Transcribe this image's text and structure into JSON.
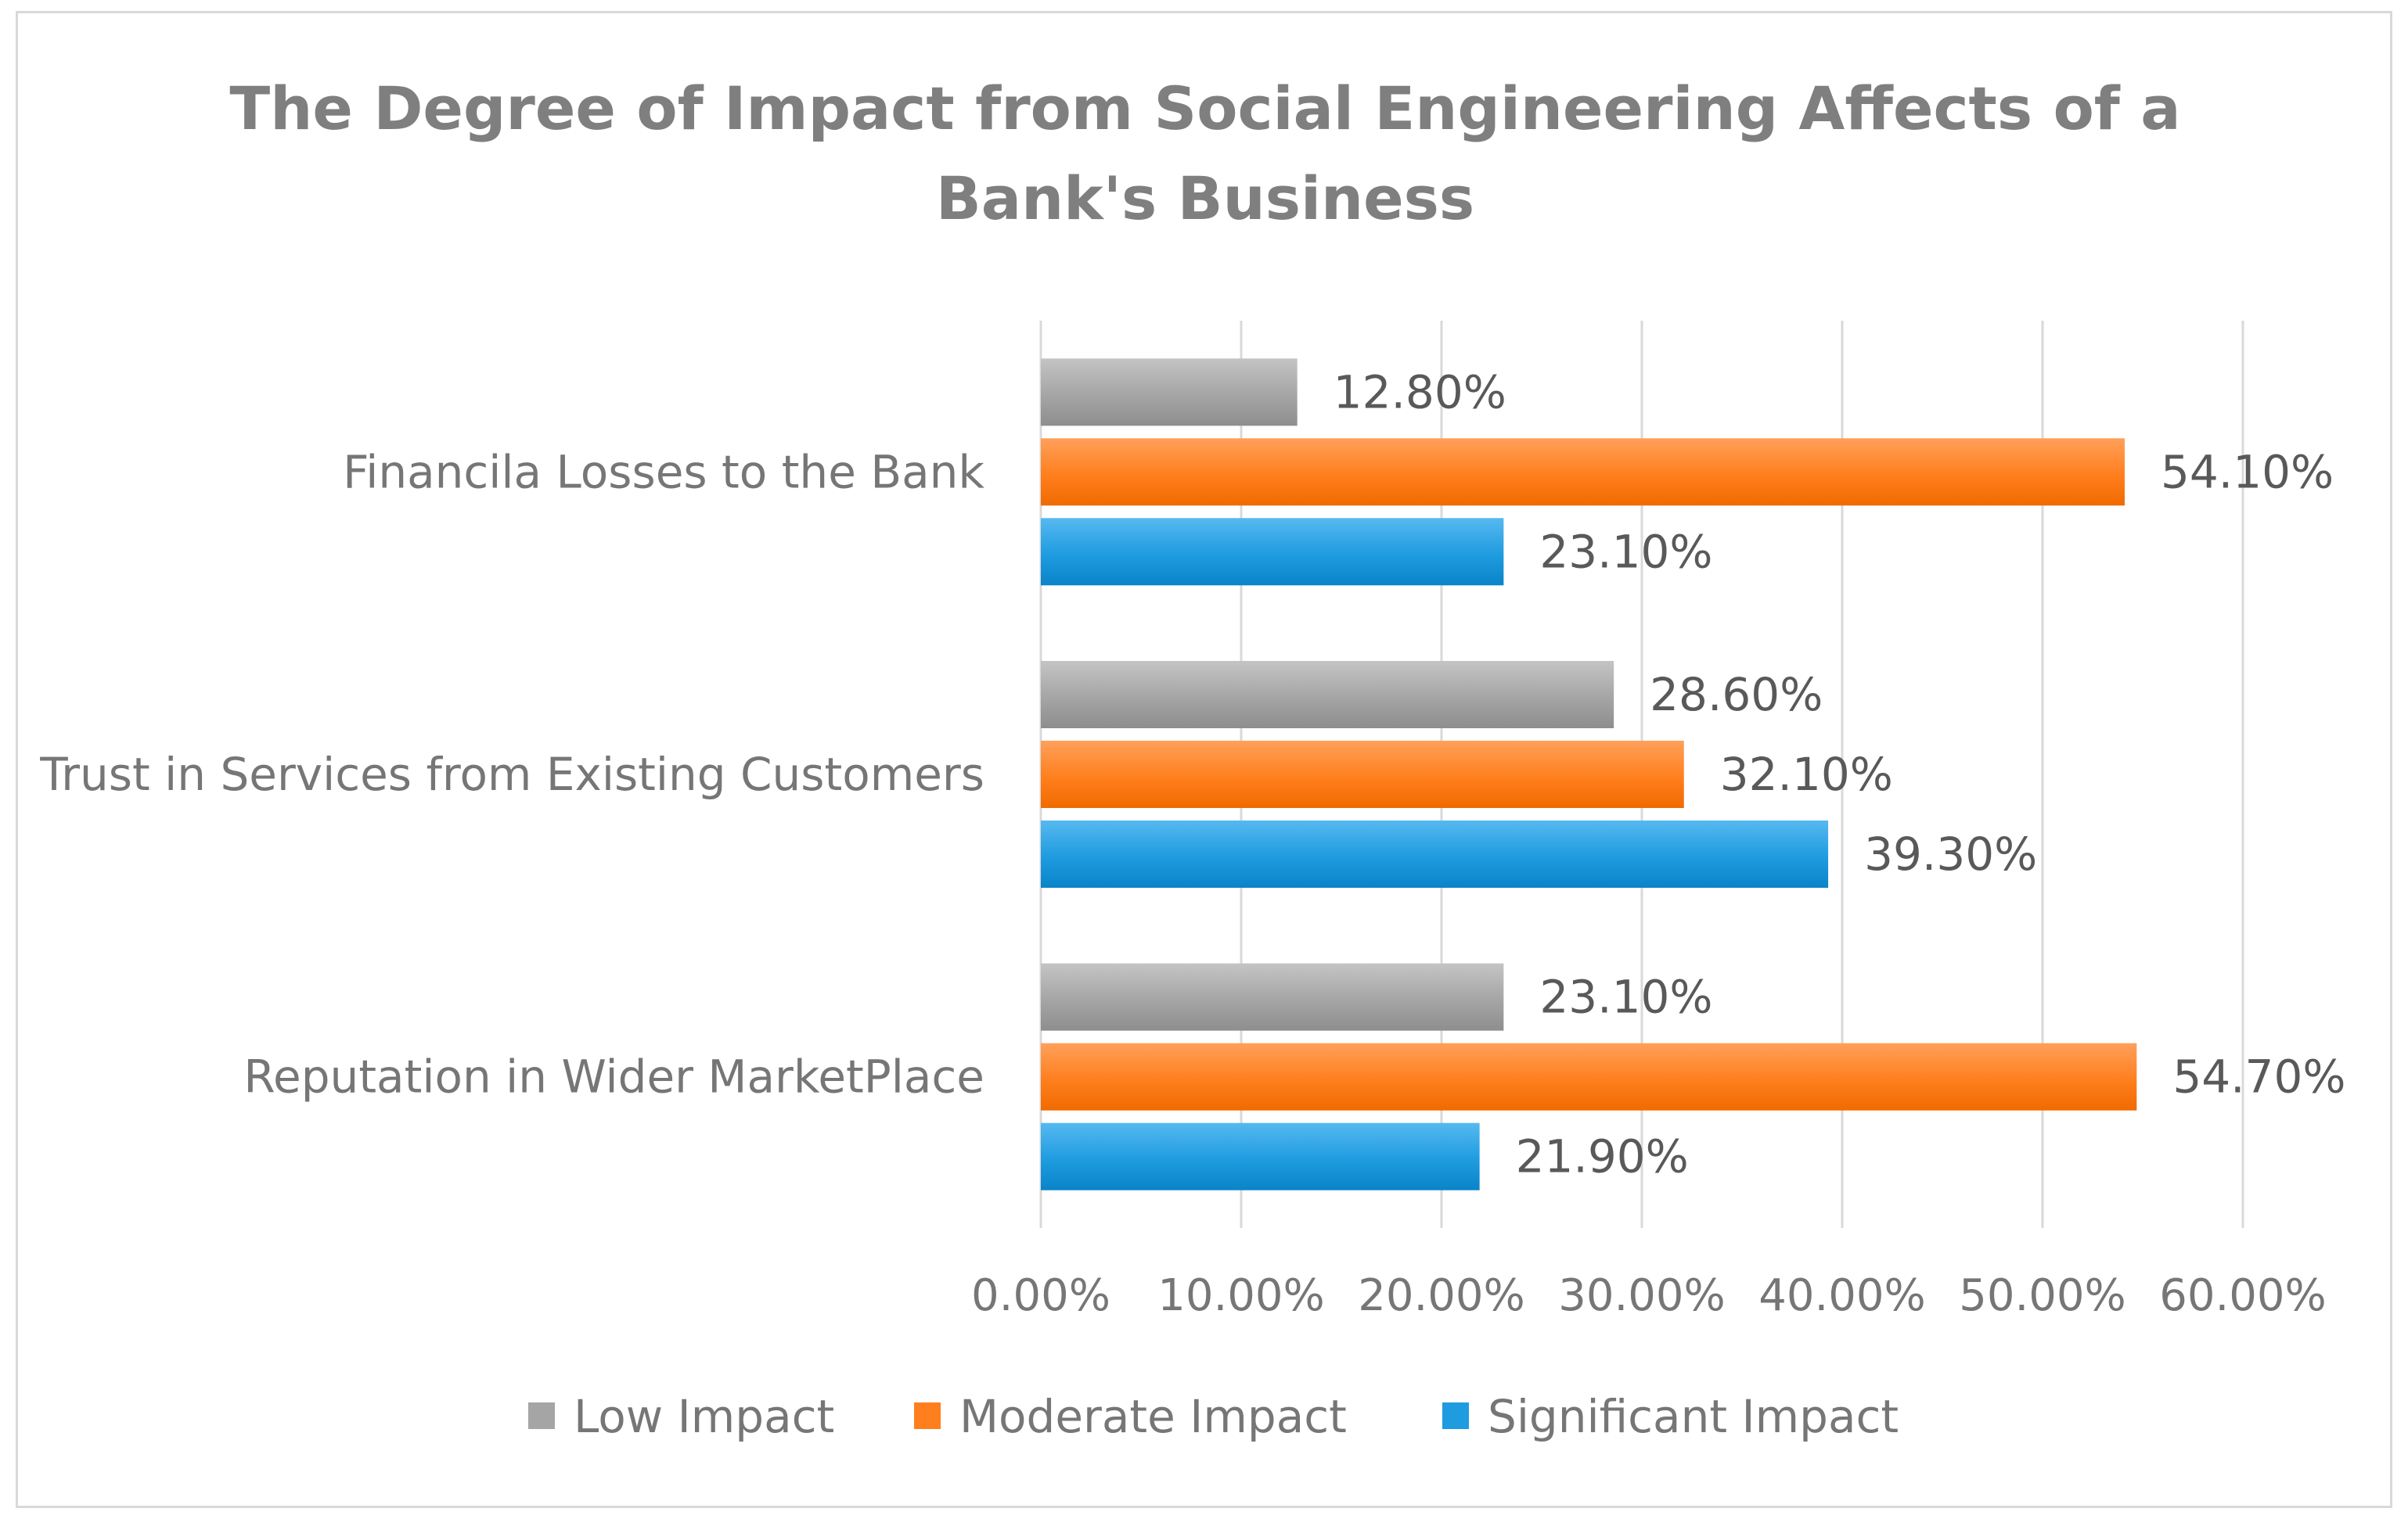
{
  "chart_data": {
    "type": "bar",
    "orientation": "horizontal",
    "title": "The Degree of Impact from Social Engineering Affects of a Bank's Business",
    "title_lines": [
      "The Degree of Impact from Social Engineering Affects of a",
      "Bank's Business"
    ],
    "categories": [
      "Financila Losses to the Bank",
      "Trust in Services from Existing Customers",
      "Reputation in Wider MarketPlace"
    ],
    "series": [
      {
        "name": "Low Impact",
        "color": "#a5a5a5",
        "values": [
          12.8,
          28.6,
          23.1
        ],
        "labels": [
          "12.80%",
          "28.60%",
          "23.10%"
        ]
      },
      {
        "name": "Moderate Impact",
        "color": "#ff7f1e",
        "values": [
          54.1,
          32.1,
          54.7
        ],
        "labels": [
          "54.10%",
          "32.10%",
          "54.70%"
        ]
      },
      {
        "name": "Significant Impact",
        "color": "#1f9be0",
        "values": [
          23.1,
          39.3,
          21.9
        ],
        "labels": [
          "23.10%",
          "39.30%",
          "21.90%"
        ]
      }
    ],
    "xlim": [
      0,
      60
    ],
    "x_ticks": [
      0,
      10,
      20,
      30,
      40,
      50,
      60
    ],
    "x_tick_labels": [
      "0.00%",
      "10.00%",
      "20.00%",
      "30.00%",
      "40.00%",
      "50.00%",
      "60.00%"
    ],
    "xlabel": "",
    "ylabel": "",
    "grid": true,
    "legend_position": "bottom"
  }
}
